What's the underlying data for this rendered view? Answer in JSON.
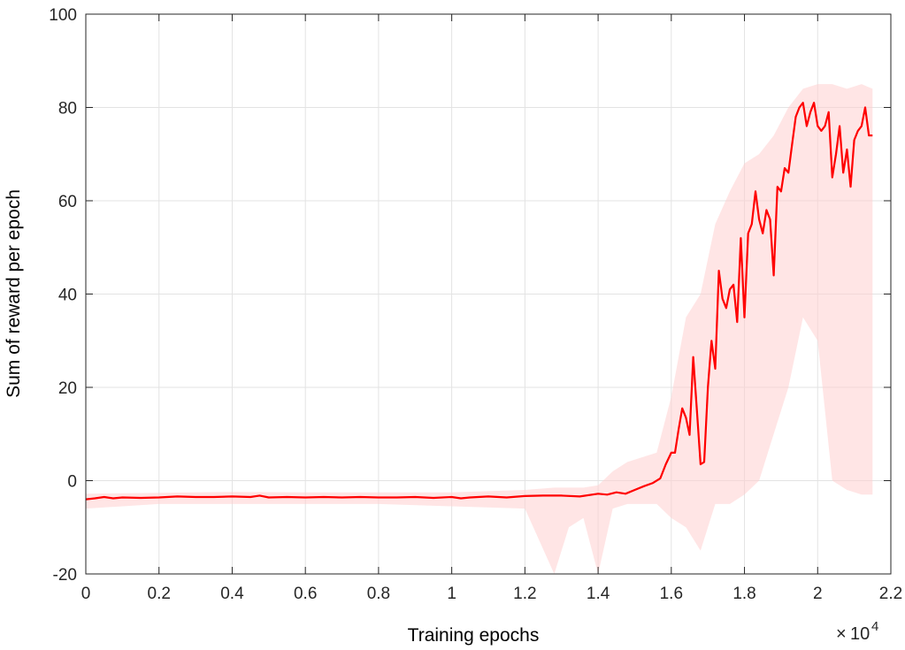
{
  "chart_data": {
    "type": "line",
    "title": "",
    "xlabel": "Training epochs",
    "ylabel": "Sum of reward per epoch",
    "x_exponent_label": {
      "times": "×",
      "base": "10",
      "exp": "4"
    },
    "xlim": [
      0,
      22000
    ],
    "ylim": [
      -20,
      100
    ],
    "x_ticks": [
      0,
      2000,
      4000,
      6000,
      8000,
      10000,
      12000,
      14000,
      16000,
      18000,
      20000,
      22000
    ],
    "x_tick_labels": [
      "0",
      "0.2",
      "0.4",
      "0.6",
      "0.8",
      "1",
      "1.2",
      "1.4",
      "1.6",
      "1.8",
      "2",
      "2.2"
    ],
    "y_ticks": [
      -20,
      0,
      20,
      40,
      60,
      80,
      100
    ],
    "y_tick_labels": [
      "-20",
      "0",
      "20",
      "40",
      "60",
      "80",
      "100"
    ],
    "grid": true,
    "series": [
      {
        "role": "smoothed",
        "color": "#ff0000",
        "x": [
          0,
          250,
          500,
          750,
          1000,
          1500,
          2000,
          2500,
          3000,
          3500,
          4000,
          4500,
          4750,
          5000,
          5500,
          6000,
          6500,
          7000,
          7500,
          8000,
          8500,
          9000,
          9500,
          10000,
          10250,
          10500,
          11000,
          11500,
          12000,
          12500,
          13000,
          13500,
          14000,
          14250,
          14500,
          14750,
          15000,
          15250,
          15500,
          15700,
          15850,
          16000,
          16100,
          16200,
          16300,
          16400,
          16500,
          16600,
          16700,
          16800,
          16900,
          17000,
          17100,
          17200,
          17300,
          17400,
          17500,
          17600,
          17700,
          17800,
          17900,
          18000,
          18100,
          18200,
          18300,
          18400,
          18500,
          18600,
          18700,
          18800,
          18900,
          19000,
          19100,
          19200,
          19300,
          19400,
          19500,
          19600,
          19700,
          19800,
          19900,
          20000,
          20100,
          20200,
          20300,
          20400,
          20500,
          20600,
          20700,
          20800,
          20900,
          21000,
          21100,
          21200,
          21300,
          21400,
          21500
        ],
        "values": [
          -4.0,
          -3.8,
          -3.5,
          -3.8,
          -3.6,
          -3.7,
          -3.6,
          -3.4,
          -3.5,
          -3.5,
          -3.4,
          -3.5,
          -3.2,
          -3.6,
          -3.5,
          -3.6,
          -3.5,
          -3.6,
          -3.5,
          -3.6,
          -3.6,
          -3.5,
          -3.7,
          -3.5,
          -3.8,
          -3.6,
          -3.4,
          -3.6,
          -3.3,
          -3.2,
          -3.2,
          -3.4,
          -2.8,
          -3.0,
          -2.5,
          -2.8,
          -2.0,
          -1.2,
          -0.5,
          0.5,
          3.5,
          6.0,
          6.0,
          11.0,
          15.5,
          13.5,
          9.8,
          26.5,
          15.0,
          3.5,
          4.0,
          20.0,
          30.0,
          24.0,
          45.0,
          39.0,
          37.0,
          41.0,
          42.0,
          34.0,
          52.0,
          35.0,
          53.0,
          55.0,
          62.0,
          56.0,
          53.0,
          58.0,
          56.0,
          44.0,
          63.0,
          62.0,
          67.0,
          66.0,
          72.0,
          78.0,
          80.0,
          81.0,
          76.0,
          79.0,
          81.0,
          76.0,
          75.0,
          76.0,
          79.0,
          65.0,
          70.0,
          76.0,
          66.0,
          71.0,
          63.0,
          73.0,
          75.0,
          76.0,
          80.0,
          74.0,
          74.0
        ]
      }
    ],
    "raw_band": {
      "role": "raw",
      "color": "#ffd0d0",
      "x": [
        0,
        2000,
        4000,
        6000,
        8000,
        10000,
        12000,
        12800,
        13200,
        13600,
        14000,
        14400,
        14800,
        15200,
        15600,
        16000,
        16400,
        16800,
        17200,
        17600,
        18000,
        18400,
        18800,
        19200,
        19600,
        20000,
        20400,
        20800,
        21200,
        21500
      ],
      "upper": [
        -2.8,
        -2.6,
        -2.4,
        -2.5,
        -2.5,
        -2.5,
        -2.0,
        -1.5,
        -1.5,
        -1.5,
        -1.0,
        2.0,
        4.0,
        5.0,
        6.0,
        18.0,
        35.0,
        40.0,
        55.0,
        62.0,
        68.0,
        70.0,
        74.0,
        80.0,
        84.0,
        85.0,
        85.0,
        84.0,
        85.0,
        84.0
      ],
      "lower": [
        -6.0,
        -5.0,
        -5.0,
        -5.0,
        -5.0,
        -5.5,
        -6.0,
        -20.0,
        -10.0,
        -8.0,
        -20.0,
        -6.0,
        -5.0,
        -5.0,
        -5.0,
        -8.0,
        -10.0,
        -15.0,
        -5.0,
        -5.0,
        -3.0,
        0.0,
        10.0,
        20.0,
        35.0,
        30.0,
        0.0,
        -2.0,
        -3.0,
        -3.0
      ]
    }
  }
}
